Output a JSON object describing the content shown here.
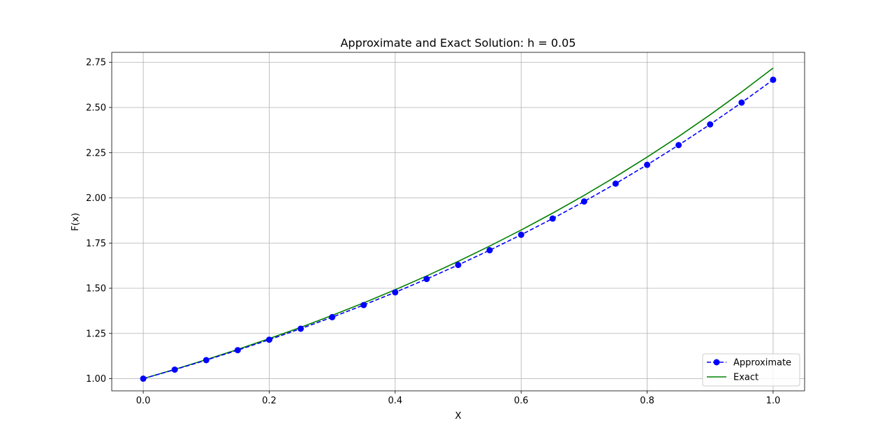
{
  "chart_data": {
    "type": "line",
    "title": "Approximate and Exact Solution: h = 0.05",
    "xlabel": "X",
    "ylabel": "F(x)",
    "xlim": [
      -0.05,
      1.05
    ],
    "ylim": [
      0.9325,
      2.805
    ],
    "x_ticks": [
      0.0,
      0.2,
      0.4,
      0.6,
      0.8,
      1.0
    ],
    "x_tick_labels": [
      "0.0",
      "0.2",
      "0.4",
      "0.6",
      "0.8",
      "1.0"
    ],
    "y_ticks": [
      1.0,
      1.25,
      1.5,
      1.75,
      2.0,
      2.25,
      2.5,
      2.75
    ],
    "y_tick_labels": [
      "1.00",
      "1.25",
      "1.50",
      "1.75",
      "2.00",
      "2.25",
      "2.50",
      "2.75"
    ],
    "grid": true,
    "legend_position": "lower-right",
    "series": [
      {
        "name": "Approximate",
        "color": "#0000ff",
        "style": "dashed-with-markers",
        "x": [
          0.0,
          0.05,
          0.1,
          0.15,
          0.2,
          0.25,
          0.3,
          0.35,
          0.4,
          0.45,
          0.5,
          0.55,
          0.6,
          0.65,
          0.7,
          0.75,
          0.8,
          0.85,
          0.9,
          0.95,
          1.0
        ],
        "y": [
          1.0,
          1.05,
          1.1025,
          1.1576,
          1.2155,
          1.2763,
          1.3401,
          1.4071,
          1.4775,
          1.5513,
          1.6289,
          1.7103,
          1.7959,
          1.8856,
          1.9799,
          2.0789,
          2.1829,
          2.292,
          2.4066,
          2.527,
          2.6533
        ]
      },
      {
        "name": "Exact",
        "color": "#008000",
        "style": "solid",
        "x": [
          0.0,
          0.05,
          0.1,
          0.15,
          0.2,
          0.25,
          0.3,
          0.35,
          0.4,
          0.45,
          0.5,
          0.55,
          0.6,
          0.65,
          0.7,
          0.75,
          0.8,
          0.85,
          0.9,
          0.95,
          1.0
        ],
        "y": [
          1.0,
          1.0513,
          1.1052,
          1.1618,
          1.2214,
          1.284,
          1.3499,
          1.4191,
          1.4918,
          1.5683,
          1.6487,
          1.7333,
          1.8221,
          1.9155,
          2.0138,
          2.117,
          2.2255,
          2.3396,
          2.4596,
          2.5857,
          2.7183
        ]
      }
    ]
  }
}
